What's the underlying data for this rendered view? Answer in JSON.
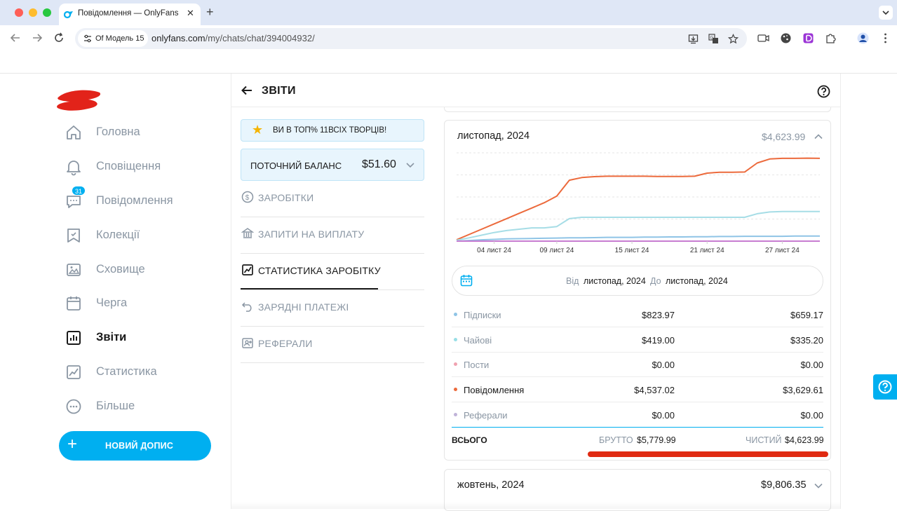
{
  "browser": {
    "tab_title": "Повідомлення — OnlyFans",
    "profile_chip": "Of Модель 15",
    "url_host": "onlyfans.com",
    "url_path": "/my/chats/chat/394004932/"
  },
  "sidebar": {
    "items": [
      {
        "label": "Головна",
        "icon": "home-icon"
      },
      {
        "label": "Сповіщення",
        "icon": "bell-icon"
      },
      {
        "label": "Повідомлення",
        "icon": "message-icon",
        "badge": "31"
      },
      {
        "label": "Колекції",
        "icon": "collections-icon"
      },
      {
        "label": "Сховище",
        "icon": "vault-icon"
      },
      {
        "label": "Черга",
        "icon": "calendar-icon"
      },
      {
        "label": "Звіти",
        "icon": "statements-icon",
        "active": true
      },
      {
        "label": "Статистика",
        "icon": "statistics-icon"
      },
      {
        "label": "Більше",
        "icon": "more-icon"
      }
    ],
    "new_post_label": "НОВИЙ ДОПИС"
  },
  "header": {
    "title": "ЗВІТИ"
  },
  "menu": {
    "top_banner": "ВИ В ТОП% 11ВСІХ ТВОРЦІВ!",
    "balance_label": "ПОТОЧНИЙ БАЛАНС",
    "balance_value": "$51.60",
    "items": [
      {
        "label": "ЗАРОБІТКИ",
        "icon": "dollar-circle-icon"
      },
      {
        "label": "ЗАПИТИ НА ВИПЛАТУ",
        "icon": "bank-icon"
      },
      {
        "label": "СТАТИСТИКА ЗАРОБІТКУ",
        "icon": "chart-line-icon",
        "active": true
      },
      {
        "label": "ЗАРЯДНІ ПЛАТЕЖІ",
        "icon": "undo-icon"
      },
      {
        "label": "РЕФЕРАЛИ",
        "icon": "referral-icon"
      }
    ]
  },
  "report": {
    "month": "листопад, 2024",
    "total": "$4,623.99",
    "range_from_label": "Від",
    "range_from": "листопад, 2024",
    "range_to_label": "До",
    "range_to": "листопад, 2024",
    "rows": [
      {
        "name": "Підписки",
        "gross": "$823.97",
        "net": "$659.17",
        "color": "#8fc4e6"
      },
      {
        "name": "Чайові",
        "gross": "$419.00",
        "net": "$335.20",
        "color": "#98dfe6"
      },
      {
        "name": "Пости",
        "gross": "$0.00",
        "net": "$0.00",
        "color": "#f0a2b0"
      },
      {
        "name": "Повідомлення",
        "gross": "$4,537.02",
        "net": "$3,629.61",
        "color": "#ec6a3c",
        "strong": true
      },
      {
        "name": "Реферали",
        "gross": "$0.00",
        "net": "$0.00",
        "color": "#c0b3d8"
      }
    ],
    "total_label": "ВСЬОГО",
    "gross_label": "БРУТТО",
    "gross_total": "$5,779.99",
    "net_label": "ЧИСТИЙ",
    "net_total": "$4,623.99"
  },
  "report_next": {
    "month": "жовтень, 2024",
    "total": "$9,806.35"
  },
  "chart_data": {
    "type": "line",
    "x": [
      "01 лист 24",
      "02 лист 24",
      "03 лист 24",
      "04 лист 24",
      "05 лист 24",
      "06 лист 24",
      "07 лист 24",
      "08 лист 24",
      "09 лист 24",
      "10 лист 24",
      "11 лист 24",
      "12 лист 24",
      "13 лист 24",
      "14 лист 24",
      "15 лист 24",
      "16 лист 24",
      "17 лист 24",
      "18 лист 24",
      "19 лист 24",
      "20 лист 24",
      "21 лист 24",
      "22 лист 24",
      "23 лист 24",
      "24 лист 24",
      "25 лист 24",
      "26 лист 24",
      "27 лист 24",
      "28 лист 24",
      "29 лист 24",
      "30 лист 24"
    ],
    "tick_labels": [
      "04 лист 24",
      "09 лист 24",
      "15 лист 24",
      "21 лист 24",
      "27 лист 24"
    ],
    "tick_index": [
      3,
      8,
      14,
      20,
      26
    ],
    "ylim": [
      0,
      4000
    ],
    "grid": "horizontal-dashed",
    "series": [
      {
        "color": "#ec6a3c",
        "values": [
          60,
          300,
          540,
          780,
          1020,
          1260,
          1500,
          1740,
          2040,
          2760,
          2880,
          2920,
          2940,
          2940,
          2940,
          2940,
          2930,
          2930,
          2930,
          2940,
          3080,
          3120,
          3120,
          3130,
          3540,
          3720,
          3750,
          3750,
          3760,
          3750
        ]
      },
      {
        "color": "#a6dde6",
        "values": [
          40,
          150,
          270,
          390,
          480,
          540,
          600,
          600,
          660,
          1020,
          1080,
          1080,
          1080,
          1080,
          1080,
          1080,
          1080,
          1080,
          1080,
          1080,
          1080,
          1080,
          1080,
          1080,
          1240,
          1320,
          1340,
          1340,
          1340,
          1340
        ]
      },
      {
        "color": "#8fc4e6",
        "values": [
          0,
          30,
          60,
          80,
          100,
          110,
          120,
          130,
          140,
          150,
          150,
          160,
          170,
          170,
          170,
          180,
          180,
          190,
          190,
          200,
          200,
          210,
          210,
          220,
          220,
          220,
          220,
          230,
          230,
          230
        ]
      },
      {
        "color": "#c77dd1",
        "values": [
          0,
          0,
          0,
          0,
          0,
          0,
          0,
          0,
          0,
          0,
          0,
          0,
          0,
          0,
          0,
          0,
          0,
          0,
          0,
          0,
          0,
          0,
          0,
          0,
          0,
          0,
          0,
          0,
          0,
          0
        ]
      }
    ]
  }
}
